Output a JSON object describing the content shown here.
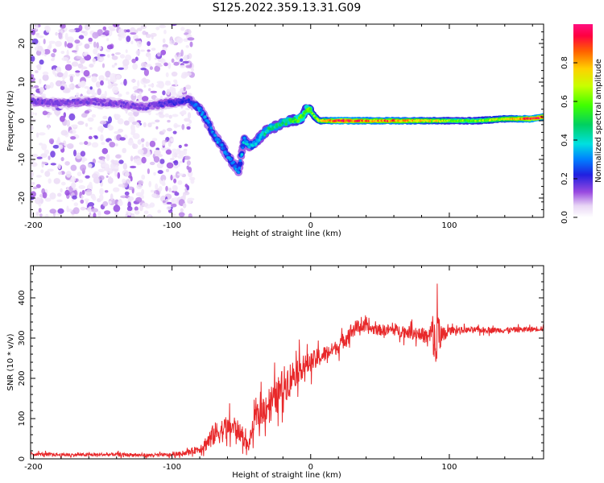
{
  "title": "S125.2022.359.13.31.G09",
  "colors": {
    "snr_line": "#e8282a",
    "frame": "#000000"
  },
  "chart_data": [
    {
      "type": "heatmap",
      "xlabel": "Height of straight line (km)",
      "ylabel": "Frequency (Hz)",
      "xlim": [
        -202,
        168
      ],
      "ylim": [
        -25,
        25
      ],
      "xticks": [
        -200,
        -100,
        0,
        100
      ],
      "yticks": [
        -20,
        -10,
        0,
        10,
        20
      ],
      "grid": false,
      "colorbar": {
        "label": "Normalized spectral amplitude",
        "range": [
          0,
          1
        ],
        "ticks": [
          "0.0",
          "0.2",
          "0.4",
          "0.6",
          "0.8"
        ]
      },
      "ridge_x": [
        -200,
        -180,
        -160,
        -140,
        -120,
        -105,
        -95,
        -88,
        -80,
        -75,
        -70,
        -65,
        -60,
        -56,
        -52,
        -48,
        -44,
        -40,
        -36,
        -30,
        -25,
        -20,
        -15,
        -10,
        -6,
        -3,
        0,
        3,
        6,
        10,
        20,
        40,
        60,
        80,
        88,
        92,
        100,
        120,
        140,
        160,
        168
      ],
      "ridge_freq": [
        5,
        4.5,
        5,
        4.5,
        3.5,
        4.5,
        5,
        5.5,
        3,
        0,
        -3.5,
        -6,
        -9,
        -11,
        -13,
        -5,
        -6.5,
        -6,
        -4,
        -2,
        -1.5,
        -0.5,
        0,
        0.2,
        1,
        3,
        2.5,
        1,
        0,
        0,
        0,
        0,
        0,
        0,
        0,
        0,
        0,
        0,
        0.5,
        0.5,
        1
      ],
      "ridge_amplitude": [
        0.15,
        0.15,
        0.15,
        0.15,
        0.15,
        0.18,
        0.2,
        0.2,
        0.3,
        0.3,
        0.3,
        0.3,
        0.3,
        0.3,
        0.3,
        0.35,
        0.35,
        0.35,
        0.4,
        0.45,
        0.45,
        0.45,
        0.5,
        0.55,
        0.55,
        0.55,
        0.6,
        0.6,
        0.65,
        0.75,
        0.95,
        0.85,
        0.85,
        0.75,
        0.7,
        0.7,
        0.6,
        0.6,
        0.7,
        0.95,
        0.9
      ]
    },
    {
      "type": "line",
      "xlabel": "Height of straight line (km)",
      "ylabel": "SNR (10 * v/v)",
      "xlim": [
        -202,
        168
      ],
      "ylim": [
        0,
        480
      ],
      "xticks": [
        -200,
        -100,
        0,
        100
      ],
      "yticks": [
        0,
        100,
        200,
        300,
        400
      ],
      "grid": false,
      "series": [
        {
          "x": [
            -200,
            -180,
            -160,
            -140,
            -120,
            -100,
            -90,
            -80,
            -75,
            -70,
            -65,
            -60,
            -55,
            -50,
            -45,
            -40,
            -35,
            -30,
            -25,
            -20,
            -15,
            -10,
            -5,
            0,
            5,
            10,
            15,
            20,
            25,
            30,
            35,
            40,
            50,
            60,
            70,
            80,
            85,
            88,
            90,
            92,
            95,
            100,
            120,
            140,
            160,
            168
          ],
          "y": [
            12,
            10,
            10,
            11,
            9,
            10,
            15,
            25,
            40,
            60,
            70,
            75,
            80,
            60,
            30,
            100,
            120,
            140,
            150,
            180,
            200,
            220,
            230,
            240,
            250,
            260,
            270,
            280,
            300,
            320,
            330,
            325,
            320,
            320,
            315,
            310,
            300,
            320,
            260,
            330,
            300,
            320,
            320,
            320,
            322,
            325
          ],
          "noise": [
            6,
            6,
            6,
            6,
            6,
            6,
            8,
            15,
            30,
            40,
            45,
            40,
            40,
            30,
            20,
            40,
            50,
            60,
            60,
            70,
            60,
            50,
            40,
            35,
            35,
            30,
            25,
            25,
            30,
            30,
            25,
            20,
            20,
            20,
            22,
            25,
            30,
            60,
            120,
            80,
            40,
            12,
            10,
            10,
            10,
            10
          ]
        }
      ]
    }
  ]
}
